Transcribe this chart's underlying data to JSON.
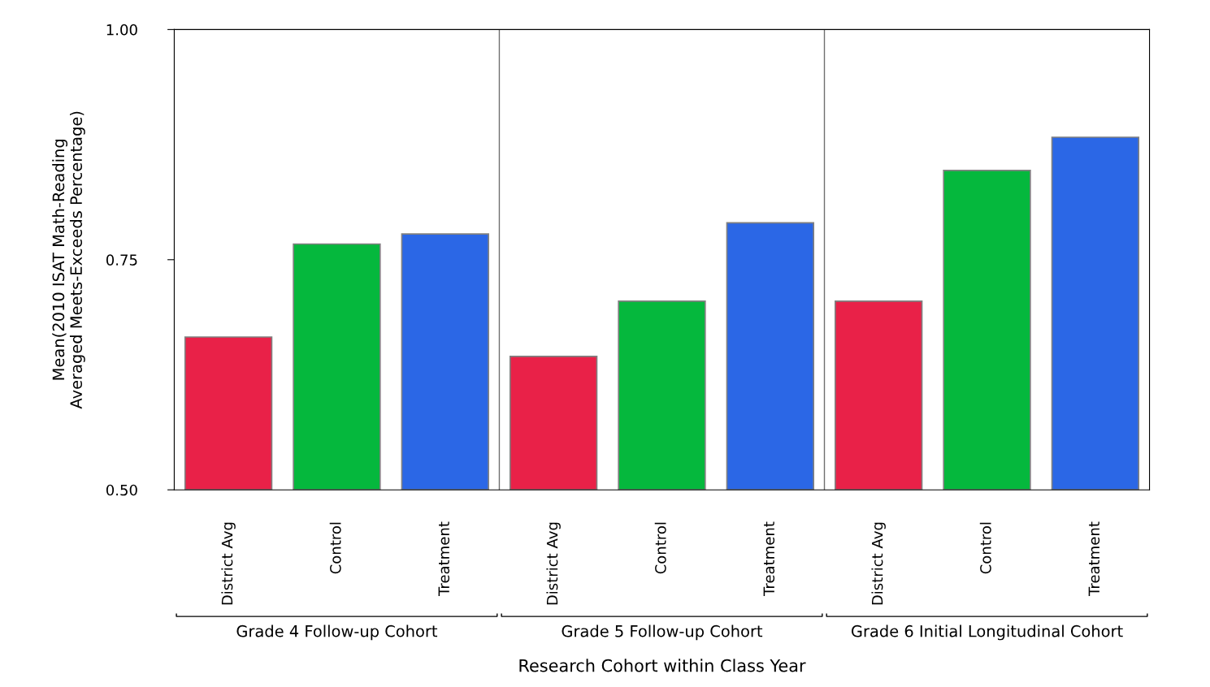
{
  "chart_data": {
    "type": "bar",
    "categories": [
      "District Avg",
      "Control",
      "Treatment",
      "District Avg",
      "Control",
      "Treatment",
      "District Avg",
      "Control",
      "Treatment"
    ],
    "values": [
      0.666,
      0.767,
      0.778,
      0.645,
      0.705,
      0.79,
      0.705,
      0.847,
      0.883
    ],
    "colors": [
      "#e92148",
      "#05b83d",
      "#2b67e6",
      "#e92148",
      "#05b83d",
      "#2b67e6",
      "#e92148",
      "#05b83d",
      "#2b67e6"
    ],
    "ylabel": "Mean(2010 ISAT Math-Reading\nAveraged Meets-Exceeds Percentage)",
    "xlabel": "Research Cohort within Class Year",
    "annotations": [
      "Grade 4 Follow-up Cohort",
      "Grade 5 Follow-up Cohort",
      "Grade 6 Initial Longitudinal Cohort"
    ],
    "ylim": [
      0.5,
      1.0
    ],
    "yticks": [
      {
        "value": 0.5,
        "label": "0.50"
      },
      {
        "value": 0.75,
        "label": "0.75"
      },
      {
        "value": 1.0,
        "label": "1.00"
      }
    ],
    "grid": false,
    "legend": false
  }
}
